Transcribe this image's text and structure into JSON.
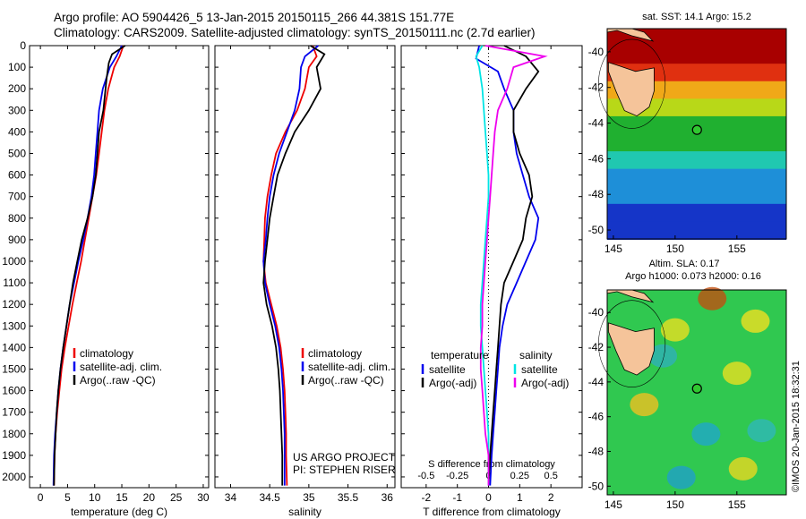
{
  "header": {
    "line1": "Argo profile: AO 5904426_5 13-Jan-2015 20150115_266 44.381S 151.77E",
    "line2": "Climatology: CARS2009. Satellite-adjusted climatology: synTS_20150111.nc (2.7d earlier)"
  },
  "colors": {
    "climatology": "#ee0000",
    "satellite": "#0000ee",
    "argo": "#000000",
    "sal_satellite": "#00e5e5",
    "sal_argo": "#ee00ee"
  },
  "chart_data": [
    {
      "type": "line",
      "xlabel": "temperature (deg C)",
      "xlim": [
        -2,
        31
      ],
      "xticks": [
        "0",
        "5",
        "10",
        "15",
        "20",
        "25",
        "30"
      ],
      "ylim": [
        0,
        2050
      ],
      "yticks": [
        "0",
        "100",
        "200",
        "300",
        "400",
        "500",
        "600",
        "700",
        "800",
        "900",
        "1000",
        "1100",
        "1200",
        "1300",
        "1400",
        "1500",
        "1600",
        "1700",
        "1800",
        "1900",
        "2000"
      ],
      "legend": [
        "climatology",
        "satellite-adj. clim.",
        "Argo(..raw -QC)"
      ],
      "series": [
        {
          "name": "climatology",
          "x": [
            15.3,
            14.6,
            13.6,
            12.5,
            11.8,
            11.3,
            10.8,
            10.3,
            9.6,
            8.9,
            8.2,
            7.5,
            6.7,
            5.9,
            5.2,
            4.5,
            3.9,
            3.5,
            3.1,
            2.8,
            2.6,
            2.5
          ],
          "y": [
            0,
            50,
            100,
            200,
            300,
            400,
            500,
            600,
            700,
            800,
            900,
            1000,
            1100,
            1200,
            1300,
            1400,
            1500,
            1600,
            1700,
            1800,
            1900,
            2040
          ]
        },
        {
          "name": "satellite-adj. clim.",
          "x": [
            15.0,
            14.0,
            12.8,
            11.5,
            10.8,
            10.5,
            10.2,
            9.9,
            9.4,
            8.7,
            7.9,
            7.0,
            6.2,
            5.4,
            4.8,
            4.2,
            3.7,
            3.3,
            3.0,
            2.7,
            2.5,
            2.4
          ],
          "y": [
            0,
            50,
            100,
            200,
            300,
            400,
            500,
            600,
            700,
            800,
            900,
            1000,
            1100,
            1200,
            1300,
            1400,
            1500,
            1600,
            1700,
            1800,
            1900,
            2040
          ]
        },
        {
          "name": "Argo(..raw -QC)",
          "x": [
            15.6,
            13.2,
            12.6,
            12.2,
            11.6,
            10.8,
            10.5,
            10.2,
            9.6,
            8.7,
            7.6,
            6.8,
            6.0,
            5.4,
            4.8,
            4.2,
            3.7,
            3.3,
            3.0,
            2.8,
            2.6,
            2.5
          ],
          "y": [
            0,
            40,
            80,
            150,
            300,
            400,
            500,
            600,
            700,
            800,
            900,
            1000,
            1100,
            1200,
            1300,
            1400,
            1500,
            1600,
            1700,
            1800,
            1900,
            2040
          ]
        }
      ]
    },
    {
      "type": "line",
      "xlabel": "salinity",
      "xlim": [
        33.8,
        36.1
      ],
      "xticks": [
        "34",
        "34.5",
        "35",
        "35.5",
        "36"
      ],
      "ylim": [
        0,
        2050
      ],
      "legend": [
        "climatology",
        "satellite-adj. clim.",
        "Argo(..raw -QC)"
      ],
      "annotation": [
        "US ARGO PROJECT",
        "PI: STEPHEN RISER"
      ],
      "series": [
        {
          "name": "climatology",
          "x": [
            35.05,
            35.1,
            35.0,
            34.95,
            34.85,
            34.7,
            34.58,
            34.52,
            34.47,
            34.44,
            34.43,
            34.42,
            34.45,
            34.52,
            34.59,
            34.64,
            34.67,
            34.69,
            34.7,
            34.71,
            34.71,
            34.72
          ],
          "y": [
            0,
            50,
            100,
            200,
            300,
            400,
            500,
            600,
            700,
            800,
            900,
            1000,
            1100,
            1200,
            1300,
            1400,
            1500,
            1600,
            1700,
            1800,
            1900,
            2040
          ]
        },
        {
          "name": "satellite-adj. clim.",
          "x": [
            35.12,
            34.95,
            34.9,
            34.88,
            34.82,
            34.72,
            34.62,
            34.55,
            34.5,
            34.47,
            34.45,
            34.42,
            34.44,
            34.5,
            34.57,
            34.62,
            34.65,
            34.67,
            34.68,
            34.69,
            34.69,
            34.69
          ],
          "y": [
            0,
            50,
            100,
            200,
            300,
            400,
            500,
            600,
            700,
            800,
            900,
            1000,
            1100,
            1200,
            1300,
            1400,
            1500,
            1600,
            1700,
            1800,
            1900,
            2040
          ]
        },
        {
          "name": "Argo(..raw -QC)",
          "x": [
            35.02,
            35.2,
            35.1,
            35.15,
            35.0,
            34.82,
            34.7,
            34.6,
            34.55,
            34.5,
            34.47,
            34.44,
            34.42,
            34.46,
            34.53,
            34.58,
            34.61,
            34.63,
            34.64,
            34.65,
            34.66,
            34.66
          ],
          "y": [
            0,
            40,
            100,
            200,
            300,
            400,
            500,
            600,
            700,
            800,
            900,
            1000,
            1100,
            1200,
            1300,
            1400,
            1500,
            1600,
            1700,
            1800,
            1900,
            2040
          ]
        }
      ]
    },
    {
      "type": "line",
      "xlabel": "T difference from climatology",
      "xlabel_top": "S difference from climatology",
      "xlim": [
        -2.8,
        3.0
      ],
      "xticks": [
        "-2",
        "-1",
        "0",
        "1",
        "2"
      ],
      "xticks_top": [
        "-0.5",
        "-0.25",
        "0",
        "0.25",
        "0.5"
      ],
      "ylim": [
        0,
        2050
      ],
      "legend_headers": [
        "temperature",
        "salinity"
      ],
      "legend": [
        "satellite",
        "Argo(-adj)",
        "satellite",
        "Argo(-adj)"
      ],
      "series": [
        {
          "name": "temperature satellite",
          "x": [
            -0.3,
            -0.4,
            0.3,
            0.5,
            0.8,
            0.8,
            0.9,
            1.1,
            1.3,
            1.6,
            1.5,
            1.2,
            0.9,
            0.6,
            0.45,
            0.35,
            0.3,
            0.25,
            0.2,
            0.15,
            0.1,
            0.05
          ],
          "y": [
            0,
            60,
            120,
            200,
            300,
            400,
            500,
            600,
            700,
            800,
            900,
            1000,
            1100,
            1200,
            1300,
            1400,
            1500,
            1600,
            1700,
            1800,
            1900,
            2040
          ]
        },
        {
          "name": "temperature Argo(-adj)",
          "x": [
            0.5,
            1.2,
            1.6,
            1.2,
            0.8,
            0.8,
            1.0,
            1.3,
            1.4,
            1.2,
            1.1,
            0.8,
            0.5,
            0.4,
            0.35,
            0.3,
            0.25,
            0.2,
            0.15,
            0.1,
            0.05,
            0.0
          ],
          "y": [
            0,
            50,
            120,
            200,
            300,
            400,
            500,
            600,
            700,
            800,
            900,
            1000,
            1100,
            1200,
            1300,
            1400,
            1500,
            1600,
            1700,
            1800,
            1900,
            2040
          ]
        },
        {
          "name": "salinity satellite",
          "x": [
            -0.2,
            -0.4,
            -0.3,
            -0.2,
            -0.15,
            -0.1,
            -0.05,
            0.0,
            0.0,
            -0.05,
            -0.1,
            -0.15,
            -0.2,
            -0.25,
            -0.25,
            -0.2,
            -0.15,
            -0.1,
            -0.05,
            0.0,
            0.0,
            0.0
          ],
          "y": [
            0,
            50,
            100,
            200,
            300,
            400,
            500,
            600,
            700,
            800,
            900,
            1000,
            1100,
            1200,
            1300,
            1400,
            1500,
            1600,
            1700,
            1800,
            1900,
            2040
          ]
        },
        {
          "name": "salinity Argo(-adj)",
          "x": [
            -0.1,
            1.8,
            0.8,
            0.6,
            0.3,
            0.2,
            0.15,
            0.1,
            0.05,
            0.0,
            -0.05,
            -0.1,
            -0.15,
            -0.2,
            -0.2,
            -0.25,
            -0.25,
            -0.2,
            -0.15,
            -0.1,
            0.0,
            0.0
          ],
          "y": [
            0,
            50,
            100,
            200,
            300,
            400,
            500,
            600,
            700,
            800,
            900,
            1000,
            1100,
            1200,
            1300,
            1400,
            1500,
            1600,
            1700,
            1800,
            1900,
            2040
          ]
        }
      ]
    },
    {
      "type": "heatmap",
      "title": "sat. SST: 14.1 Argo: 15.2",
      "xticks": [
        "145",
        "150",
        "155"
      ],
      "yticks": [
        "-40",
        "-42",
        "-44",
        "-46",
        "-48",
        "-50"
      ],
      "xlim": [
        144.5,
        159
      ],
      "ylim": [
        -50.5,
        -38.7
      ],
      "argo_position": [
        151.77,
        -44.381
      ]
    },
    {
      "type": "heatmap",
      "title": "Altim. SLA: 0.17",
      "subtitle": "Argo h1000: 0.073 h2000: 0.16",
      "xticks": [
        "145",
        "150",
        "155"
      ],
      "yticks": [
        "-40",
        "-42",
        "-44",
        "-46",
        "-48",
        "-50"
      ],
      "xlim": [
        144.5,
        159
      ],
      "ylim": [
        -50.5,
        -38.7
      ],
      "argo_position": [
        151.77,
        -44.381
      ]
    }
  ],
  "footer": {
    "credit": "©IMOS 20-Jan-2015 18:32:31"
  }
}
